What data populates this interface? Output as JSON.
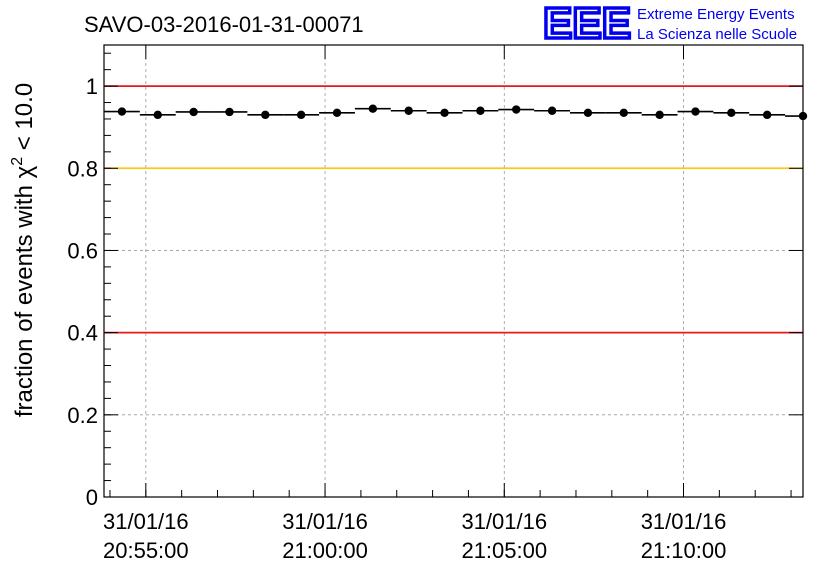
{
  "chart_data": {
    "type": "scatter",
    "title": "SAVO-03-2016-01-31-00071",
    "xlabel": "",
    "ylabel": "fraction of events with χ² < 10.0",
    "ylabel_parts": {
      "before": "fraction of events with ",
      "symbol": "χ",
      "sup": "2",
      "after": " < 10.0"
    },
    "xlim": [
      "20:53:50",
      "21:13:20"
    ],
    "ylim": [
      0,
      1.1
    ],
    "grid": true,
    "y_ticks": [
      {
        "value": 0,
        "label": "0"
      },
      {
        "value": 0.2,
        "label": "0.2"
      },
      {
        "value": 0.4,
        "label": "0.4"
      },
      {
        "value": 0.6,
        "label": "0.6"
      },
      {
        "value": 0.8,
        "label": "0.8"
      },
      {
        "value": 1.0,
        "label": "1"
      }
    ],
    "x_ticks": [
      {
        "time": "20:55:00",
        "date_label": "31/01/16",
        "time_label": "20:55:00"
      },
      {
        "time": "21:00:00",
        "date_label": "31/01/16",
        "time_label": "21:00:00"
      },
      {
        "time": "21:05:00",
        "date_label": "31/01/16",
        "time_label": "21:05:00"
      },
      {
        "time": "21:10:00",
        "date_label": "31/01/16",
        "time_label": "21:10:00"
      }
    ],
    "reference_lines": [
      {
        "y": 1.0,
        "color": "#e8191c"
      },
      {
        "y": 0.8,
        "color": "#f7c81e"
      },
      {
        "y": 0.4,
        "color": "#e8191c"
      }
    ],
    "bin_width_s": 60,
    "series": [
      {
        "name": "fraction",
        "x": [
          "20:54:20",
          "20:55:20",
          "20:56:20",
          "20:57:20",
          "20:58:20",
          "20:59:20",
          "21:00:20",
          "21:01:20",
          "21:02:20",
          "21:03:20",
          "21:04:20",
          "21:05:20",
          "21:06:20",
          "21:07:20",
          "21:08:20",
          "21:09:20",
          "21:10:20",
          "21:11:20",
          "21:12:20",
          "21:13:20"
        ],
        "values": [
          0.938,
          0.93,
          0.937,
          0.937,
          0.93,
          0.93,
          0.935,
          0.945,
          0.94,
          0.935,
          0.94,
          0.943,
          0.94,
          0.935,
          0.935,
          0.93,
          0.938,
          0.935,
          0.93,
          0.927
        ]
      }
    ]
  },
  "logo": {
    "mark": "EEE",
    "line1": "Extreme Energy Events",
    "line2": "La Scienza nelle Scuole",
    "color": "#0000ee"
  }
}
